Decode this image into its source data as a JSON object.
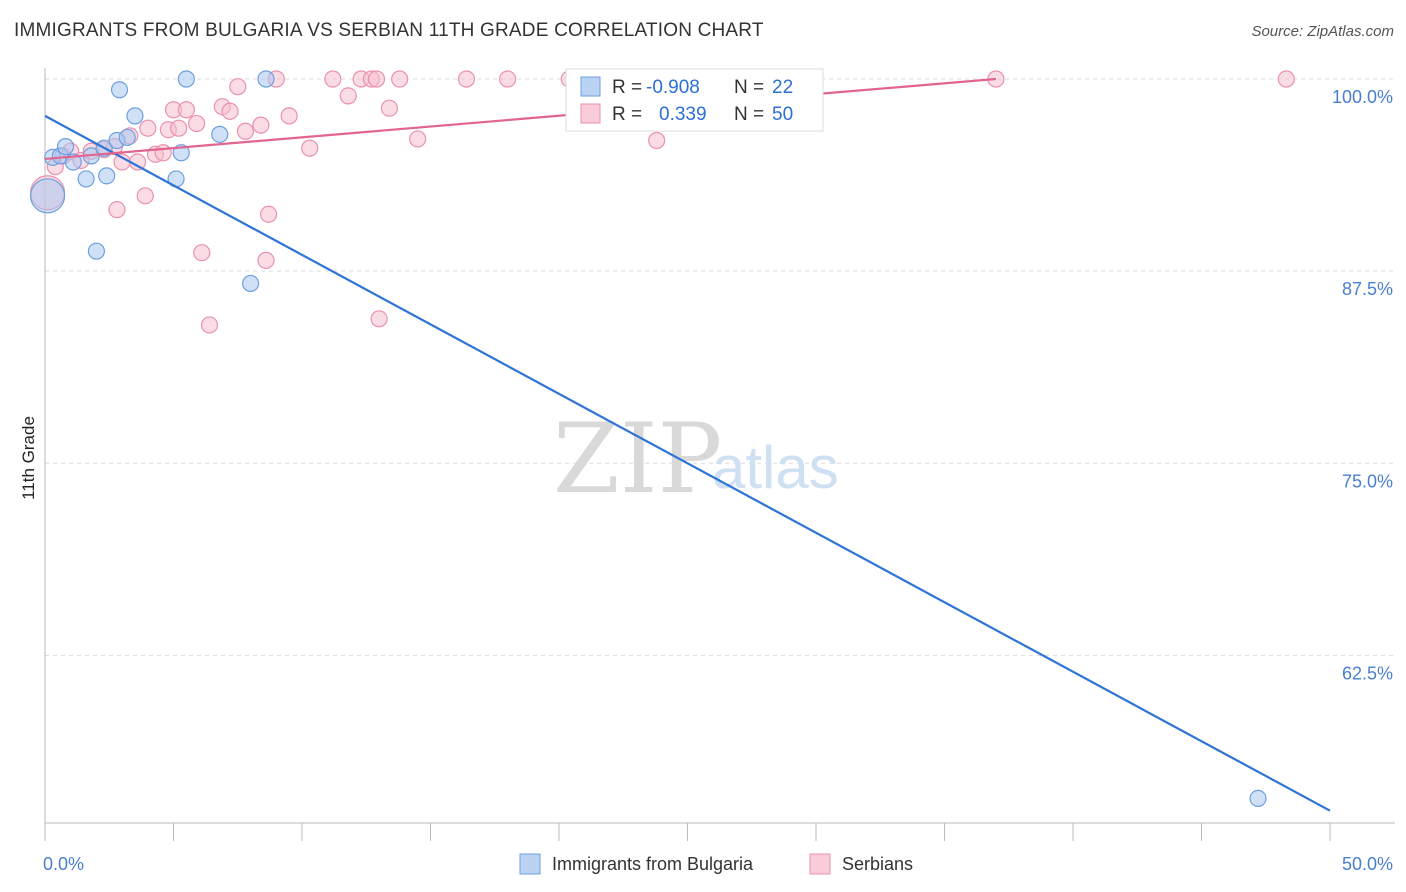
{
  "title": "IMMIGRANTS FROM BULGARIA VS SERBIAN 11TH GRADE CORRELATION CHART",
  "source": "Source: ZipAtlas.com",
  "watermark": {
    "zip": "ZIP",
    "atlas": "atlas"
  },
  "colors": {
    "blue_fill": "#a9c8f0",
    "blue_stroke": "#6d9fe0",
    "blue_line": "#2e74d6",
    "pink_fill": "#f6bfd0",
    "pink_stroke": "#eb91ad",
    "pink_line": "#e2658f",
    "grid": "#dddddd",
    "axis": "#bbbbbb"
  },
  "legend": {
    "rows": [
      {
        "r_label": "R =",
        "r_value": "-0.908",
        "n_label": "N =",
        "n_value": "22"
      },
      {
        "r_label": "R =",
        "r_value": "0.339",
        "n_label": "N =",
        "n_value": "50"
      }
    ]
  },
  "chart_data": {
    "type": "scatter",
    "title": "IMMIGRANTS FROM BULGARIA VS SERBIAN 11TH GRADE CORRELATION CHART",
    "xlabel": "",
    "ylabel": "11th Grade",
    "xlim": [
      0,
      50
    ],
    "ylim": [
      50,
      100
    ],
    "x_tick_labels": [
      "0.0%",
      "50.0%"
    ],
    "y_ticks": [
      62.5,
      75.0,
      87.5,
      100.0
    ],
    "y_tick_labels": [
      "62.5%",
      "75.0%",
      "87.5%",
      "100.0%"
    ],
    "series": [
      {
        "name": "Immigrants from Bulgaria",
        "color": "blue",
        "trend": {
          "x": [
            0,
            50
          ],
          "y": [
            97.6,
            52.4
          ]
        },
        "points": [
          {
            "x": 0.1,
            "y": 92.4,
            "big": true
          },
          {
            "x": 0.3,
            "y": 94.9
          },
          {
            "x": 0.6,
            "y": 95.0
          },
          {
            "x": 0.8,
            "y": 95.6
          },
          {
            "x": 1.1,
            "y": 94.6
          },
          {
            "x": 1.6,
            "y": 93.5
          },
          {
            "x": 1.8,
            "y": 95.0
          },
          {
            "x": 2.0,
            "y": 88.8
          },
          {
            "x": 2.3,
            "y": 95.5
          },
          {
            "x": 2.4,
            "y": 93.7
          },
          {
            "x": 2.8,
            "y": 96.0
          },
          {
            "x": 2.9,
            "y": 99.3
          },
          {
            "x": 3.2,
            "y": 96.2
          },
          {
            "x": 3.5,
            "y": 97.6
          },
          {
            "x": 5.1,
            "y": 93.5
          },
          {
            "x": 5.3,
            "y": 95.2
          },
          {
            "x": 5.5,
            "y": 100.0
          },
          {
            "x": 6.8,
            "y": 96.4
          },
          {
            "x": 8.0,
            "y": 86.7
          },
          {
            "x": 8.6,
            "y": 100.0
          },
          {
            "x": 47.2,
            "y": 53.2
          }
        ]
      },
      {
        "name": "Serbians",
        "color": "pink",
        "trend": {
          "x": [
            0,
            37
          ],
          "y": [
            94.8,
            100.0
          ]
        },
        "points": [
          {
            "x": 0.1,
            "y": 92.6,
            "big": true
          },
          {
            "x": 0.4,
            "y": 94.3
          },
          {
            "x": 0.7,
            "y": 95.0
          },
          {
            "x": 1.0,
            "y": 95.3
          },
          {
            "x": 1.4,
            "y": 94.7
          },
          {
            "x": 1.8,
            "y": 95.3
          },
          {
            "x": 2.3,
            "y": 95.4
          },
          {
            "x": 2.7,
            "y": 95.6
          },
          {
            "x": 3.0,
            "y": 94.6
          },
          {
            "x": 3.3,
            "y": 96.3
          },
          {
            "x": 3.6,
            "y": 94.6
          },
          {
            "x": 2.8,
            "y": 91.5
          },
          {
            "x": 3.9,
            "y": 92.4
          },
          {
            "x": 4.0,
            "y": 96.8
          },
          {
            "x": 4.3,
            "y": 95.1
          },
          {
            "x": 4.6,
            "y": 95.2
          },
          {
            "x": 4.8,
            "y": 96.7
          },
          {
            "x": 5.0,
            "y": 98.0
          },
          {
            "x": 5.2,
            "y": 96.8
          },
          {
            "x": 5.5,
            "y": 98.0
          },
          {
            "x": 5.9,
            "y": 97.1
          },
          {
            "x": 6.1,
            "y": 88.7
          },
          {
            "x": 6.4,
            "y": 84.0
          },
          {
            "x": 6.9,
            "y": 98.2
          },
          {
            "x": 7.2,
            "y": 97.9
          },
          {
            "x": 7.5,
            "y": 99.5
          },
          {
            "x": 7.8,
            "y": 96.6
          },
          {
            "x": 8.4,
            "y": 97.0
          },
          {
            "x": 8.6,
            "y": 88.2
          },
          {
            "x": 8.7,
            "y": 91.2
          },
          {
            "x": 9.0,
            "y": 100.0
          },
          {
            "x": 9.5,
            "y": 97.6
          },
          {
            "x": 10.3,
            "y": 95.5
          },
          {
            "x": 11.2,
            "y": 100.0
          },
          {
            "x": 11.8,
            "y": 98.9
          },
          {
            "x": 12.3,
            "y": 100.0
          },
          {
            "x": 12.7,
            "y": 100.0
          },
          {
            "x": 12.9,
            "y": 100.0
          },
          {
            "x": 13.0,
            "y": 84.4
          },
          {
            "x": 13.4,
            "y": 98.1
          },
          {
            "x": 13.8,
            "y": 100.0
          },
          {
            "x": 14.5,
            "y": 96.1
          },
          {
            "x": 16.4,
            "y": 100.0
          },
          {
            "x": 18.0,
            "y": 100.0
          },
          {
            "x": 20.4,
            "y": 100.0
          },
          {
            "x": 23.8,
            "y": 96.0
          },
          {
            "x": 37.0,
            "y": 100.0
          },
          {
            "x": 48.3,
            "y": 100.0
          }
        ]
      }
    ],
    "legend_position": "top-center",
    "grid": true
  }
}
